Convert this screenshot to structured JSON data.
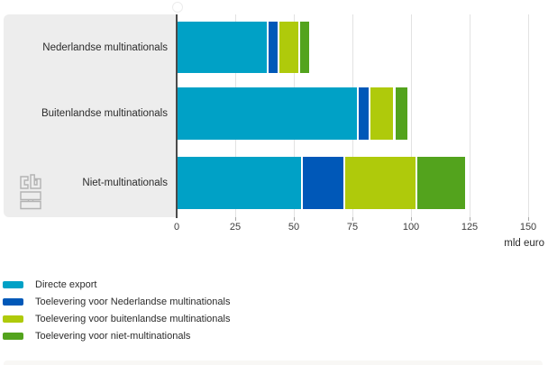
{
  "chart": {
    "unit_label": "mld euro",
    "categories": [
      "Nederlandse multinationals",
      "Buitenlandse multinationals",
      "Niet-multinationals"
    ],
    "x_tick_labels": [
      "0",
      "25",
      "50",
      "75",
      "100",
      "125",
      "150"
    ],
    "legend": [
      {
        "label": "Directe export",
        "color": "#00a1c6"
      },
      {
        "label": "Toelevering voor Nederlandse multinationals",
        "color": "#0058b8"
      },
      {
        "label": "Toelevering voor buitenlandse multinationals",
        "color": "#afca0b"
      },
      {
        "label": "Toelevering voor niet-multinationals",
        "color": "#53a31d"
      }
    ],
    "colors": {
      "panel_background": "#ededed",
      "axis_line": "#4a4a4a",
      "gridline": "#e2e2e2",
      "text": "#2b2b2b"
    },
    "branding": "cbs-logo"
  },
  "chart_data": {
    "type": "bar",
    "orientation": "horizontal",
    "stacked": true,
    "title": "",
    "xlabel": "mld euro",
    "ylabel": "",
    "xlim": [
      0,
      150
    ],
    "x_ticks": [
      0,
      25,
      50,
      75,
      100,
      125,
      150
    ],
    "gridlines": true,
    "legend_position": "bottom-left",
    "categories": [
      "Nederlandse multinationals",
      "Buitenlandse multinationals",
      "Niet-multinationals"
    ],
    "series": [
      {
        "name": "Directe export",
        "color": "#00a1c6",
        "values": [
          38.5,
          77,
          53
        ]
      },
      {
        "name": "Toelevering voor Nederlandse multinationals",
        "color": "#0058b8",
        "values": [
          4.5,
          5,
          18
        ]
      },
      {
        "name": "Toelevering voor buitenlandse multinationals",
        "color": "#afca0b",
        "values": [
          9,
          10.5,
          31
        ]
      },
      {
        "name": "Toelevering voor niet-multinationals",
        "color": "#53a31d",
        "values": [
          4.5,
          6,
          21
        ]
      }
    ]
  }
}
